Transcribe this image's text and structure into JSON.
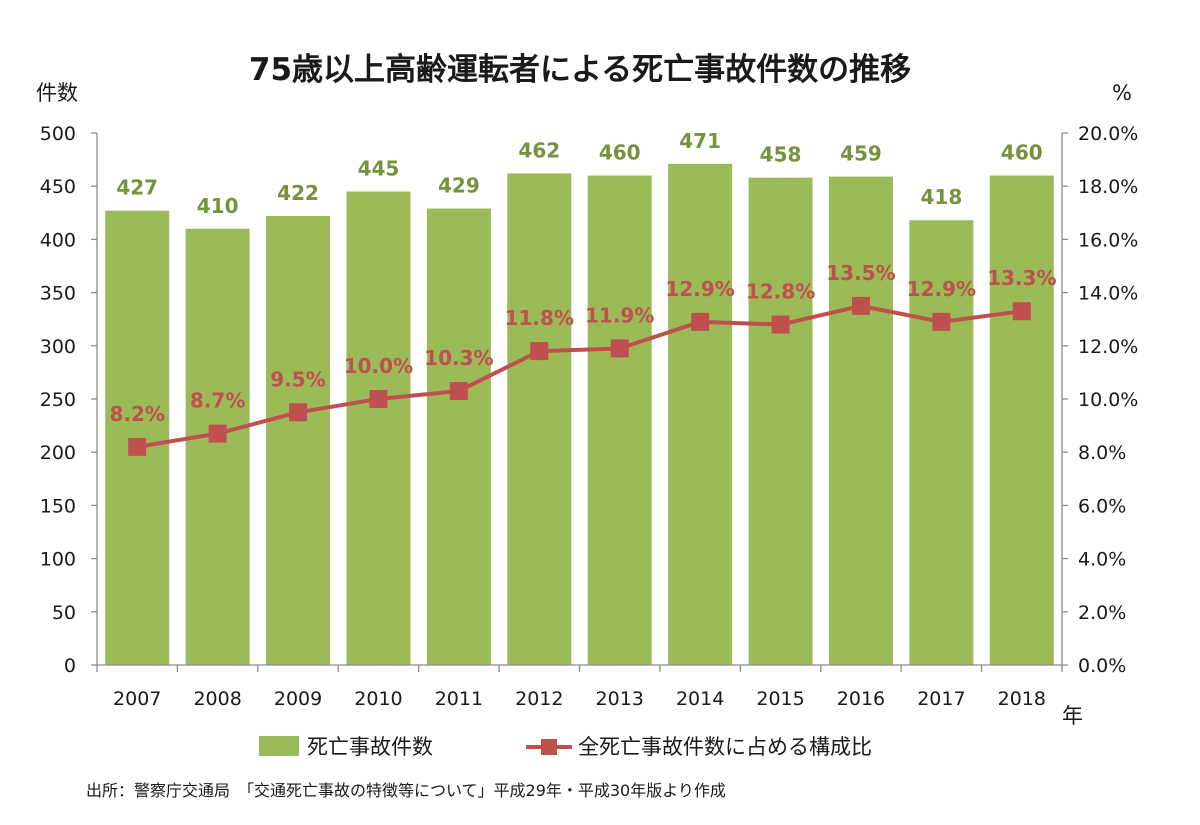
{
  "chart_data": {
    "type": "bar",
    "title": "75歳以上高齢運転者による死亡事故件数の推移",
    "y_left_unit": "件数",
    "y_right_unit": "%",
    "x_unit": "年",
    "categories": [
      "2007",
      "2008",
      "2009",
      "2010",
      "2011",
      "2012",
      "2013",
      "2014",
      "2015",
      "2016",
      "2017",
      "2018"
    ],
    "ylim_left": [
      0,
      500
    ],
    "ylim_right": [
      0,
      20
    ],
    "yticks_left": [
      "0",
      "50",
      "100",
      "150",
      "200",
      "250",
      "300",
      "350",
      "400",
      "450",
      "500"
    ],
    "yticks_right": [
      "0.0%",
      "2.0%",
      "4.0%",
      "6.0%",
      "8.0%",
      "10.0%",
      "12.0%",
      "14.0%",
      "16.0%",
      "18.0%",
      "20.0%"
    ],
    "series": [
      {
        "name": "死亡事故件数",
        "type": "bar",
        "axis": "left",
        "color": "#9bbb59",
        "label_color": "#76923c",
        "values": [
          427,
          410,
          422,
          445,
          429,
          462,
          460,
          471,
          458,
          459,
          418,
          460
        ],
        "labels": [
          "427",
          "410",
          "422",
          "445",
          "429",
          "462",
          "460",
          "471",
          "458",
          "459",
          "418",
          "460"
        ]
      },
      {
        "name": "全死亡事故件数に占める構成比",
        "type": "line",
        "axis": "right",
        "color": "#c0504d",
        "values": [
          8.2,
          8.7,
          9.5,
          10.0,
          10.3,
          11.8,
          11.9,
          12.9,
          12.8,
          13.5,
          12.9,
          13.3
        ],
        "labels": [
          "8.2%",
          "8.7%",
          "9.5%",
          "10.0%",
          "10.3%",
          "11.8%",
          "11.9%",
          "12.9%",
          "12.8%",
          "13.5%",
          "12.9%",
          "13.3%"
        ]
      }
    ],
    "grid": false,
    "legend": "bottom"
  },
  "source_note": "出所：警察庁交通局　「交通死亡事故の特徴等について」平成29年・平成30年版より作成"
}
